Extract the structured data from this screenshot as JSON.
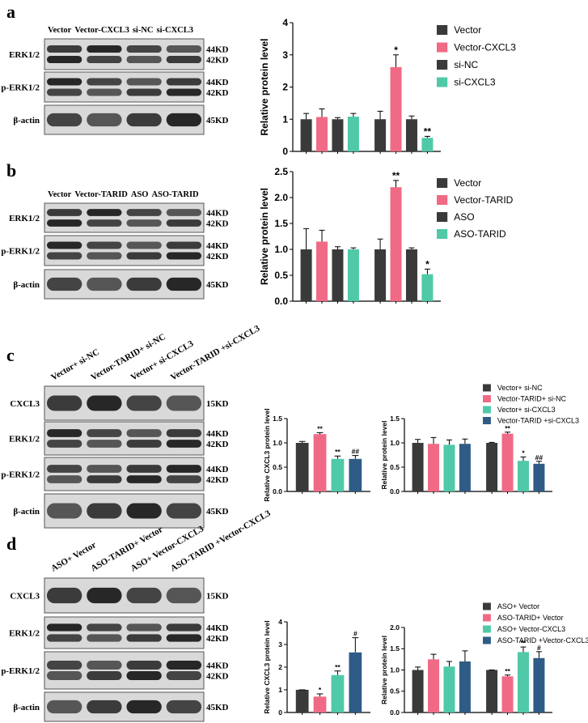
{
  "panels": [
    {
      "letter": "a",
      "rotated": false,
      "lanes": [
        "Vector",
        "Vector-CXCL3",
        "si-NC",
        "si-CXCL3"
      ],
      "rows": [
        {
          "label": "ERK1/2",
          "sizes": [
            "44KD",
            "42KD"
          ]
        },
        {
          "label": "p-ERK1/2",
          "sizes": [
            "44KD",
            "42KD"
          ]
        },
        {
          "label": "β-actin",
          "sizes": [
            "45KD"
          ]
        }
      ]
    },
    {
      "letter": "b",
      "rotated": false,
      "lanes": [
        "Vector",
        "Vector-TARID",
        "ASO",
        "ASO-TARID"
      ],
      "rows": [
        {
          "label": "ERK1/2",
          "sizes": [
            "44KD",
            "42KD"
          ]
        },
        {
          "label": "p-ERK1/2",
          "sizes": [
            "44KD",
            "42KD"
          ]
        },
        {
          "label": "β-actin",
          "sizes": [
            "45KD"
          ]
        }
      ]
    },
    {
      "letter": "c",
      "rotated": true,
      "lanes": [
        "Vector+ si-NC",
        "Vector-TARID+ si-NC",
        "Vector+ si-CXCL3",
        "Vector-TARID +si-CXCL3"
      ],
      "rows": [
        {
          "label": "CXCL3",
          "sizes": [
            "15KD"
          ]
        },
        {
          "label": "ERK1/2",
          "sizes": [
            "44KD",
            "42KD"
          ]
        },
        {
          "label": "p-ERK1/2",
          "sizes": [
            "44KD",
            "42KD"
          ]
        },
        {
          "label": "β-actin",
          "sizes": [
            "45KD"
          ]
        }
      ]
    },
    {
      "letter": "d",
      "rotated": true,
      "lanes": [
        "ASO+ Vector",
        "ASO-TARID+ Vector",
        "ASO+ Vector-CXCL3",
        "ASO-TARID +Vector-CXCL3"
      ],
      "rows": [
        {
          "label": "CXCL3",
          "sizes": [
            "15KD"
          ]
        },
        {
          "label": "ERK1/2",
          "sizes": [
            "44KD",
            "42KD"
          ]
        },
        {
          "label": "p-ERK1/2",
          "sizes": [
            "44KD",
            "42KD"
          ]
        },
        {
          "label": "β-actin",
          "sizes": [
            "45KD"
          ]
        }
      ]
    }
  ],
  "chart_data": [
    {
      "type": "bar",
      "ylabel": "Relative protein level",
      "ylim": [
        0,
        4
      ],
      "yticks": [
        0,
        1,
        2,
        3,
        4
      ],
      "categories": [
        null,
        null
      ],
      "legend": "right",
      "series": [
        {
          "name": "Vector",
          "color": "#3a3a3a",
          "values": [
            1.0,
            1.0
          ],
          "errors": [
            0.18,
            0.25
          ],
          "annotations": [
            null,
            null
          ]
        },
        {
          "name": "Vector-CXCL3",
          "color": "#f06a85",
          "values": [
            1.07,
            2.62
          ],
          "errors": [
            0.25,
            0.38
          ],
          "annotations": [
            null,
            "*"
          ]
        },
        {
          "name": "si-NC",
          "color": "#3a3a3a",
          "values": [
            1.0,
            1.0
          ],
          "errors": [
            0.05,
            0.1
          ],
          "annotations": [
            null,
            null
          ]
        },
        {
          "name": "si-CXCL3",
          "color": "#4fc9a8",
          "values": [
            1.08,
            0.42
          ],
          "errors": [
            0.1,
            0.05
          ],
          "annotations": [
            null,
            "**"
          ]
        }
      ]
    },
    {
      "type": "bar",
      "ylabel": "Relative protein level",
      "ylim": [
        0,
        2.5
      ],
      "yticks": [
        {
          "value": 0,
          "label": "0.0"
        },
        0.5,
        {
          "value": 1,
          "label": "1.0"
        },
        1.5,
        {
          "value": 2,
          "label": "2.0"
        },
        2.5
      ],
      "categories": [
        null,
        null
      ],
      "legend": "right",
      "series": [
        {
          "name": "Vector",
          "color": "#3a3a3a",
          "values": [
            1.0,
            1.0
          ],
          "errors": [
            0.4,
            0.2
          ],
          "annotations": [
            null,
            null
          ]
        },
        {
          "name": "Vector-TARID",
          "color": "#f06a85",
          "values": [
            1.15,
            2.2
          ],
          "errors": [
            0.22,
            0.13
          ],
          "annotations": [
            null,
            "**"
          ]
        },
        {
          "name": "ASO",
          "color": "#3a3a3a",
          "values": [
            1.0,
            1.0
          ],
          "errors": [
            0.05,
            0.03
          ],
          "annotations": [
            null,
            null
          ]
        },
        {
          "name": "ASO-TARID",
          "color": "#4fc9a8",
          "values": [
            1.0,
            0.52
          ],
          "errors": [
            0.03,
            0.1
          ],
          "annotations": [
            null,
            "*"
          ]
        }
      ]
    },
    {
      "type": "bar",
      "ylabel": "Relative CXCL3 protein level",
      "ylim": [
        0,
        1.5
      ],
      "yticks": [
        {
          "value": 0,
          "label": "0.0"
        },
        0.5,
        {
          "value": 1,
          "label": "1.0"
        },
        1.5
      ],
      "categories": [
        null
      ],
      "legend": "right",
      "series": [
        {
          "name": "Vector+ si-NC",
          "color": "#3a3a3a",
          "values": [
            1.0
          ],
          "errors": [
            0.03
          ],
          "annotations": [
            null
          ]
        },
        {
          "name": "Vector-TARID+ si-NC",
          "color": "#f06a85",
          "values": [
            1.18
          ],
          "errors": [
            0.03
          ],
          "annotations": [
            "**"
          ]
        },
        {
          "name": "Vector+ si-CXCL3",
          "color": "#4fc9a8",
          "values": [
            0.67
          ],
          "errors": [
            0.06
          ],
          "annotations": [
            "**"
          ]
        },
        {
          "name": "Vector-TARID +si-CXCL3",
          "color": "#2e5c87",
          "values": [
            0.67
          ],
          "errors": [
            0.07
          ],
          "annotations": [
            "##"
          ]
        }
      ]
    },
    {
      "type": "bar",
      "ylabel": "Relative protein level",
      "ylim": [
        0,
        1.5
      ],
      "yticks": [
        {
          "value": 0,
          "label": "0.0"
        },
        0.5,
        {
          "value": 1,
          "label": "1.0"
        },
        1.5
      ],
      "categories": [
        null,
        null
      ],
      "series": [
        {
          "color": "#3a3a3a",
          "values": [
            1.0,
            1.0
          ],
          "errors": [
            0.07,
            0.01
          ],
          "annotations": [
            null,
            null
          ]
        },
        {
          "color": "#f06a85",
          "values": [
            0.98,
            1.19
          ],
          "errors": [
            0.13,
            0.03
          ],
          "annotations": [
            null,
            "**"
          ]
        },
        {
          "color": "#4fc9a8",
          "values": [
            0.96,
            0.63
          ],
          "errors": [
            0.1,
            0.08
          ],
          "annotations": [
            null,
            "*"
          ]
        },
        {
          "color": "#2e5c87",
          "values": [
            0.98,
            0.57
          ],
          "errors": [
            0.1,
            0.05
          ],
          "annotations": [
            null,
            "##"
          ]
        }
      ]
    },
    {
      "type": "bar",
      "ylabel": "Relative CXCL3 protein level",
      "ylim": [
        0,
        4
      ],
      "yticks": [
        0,
        1,
        2,
        3,
        4
      ],
      "categories": [
        null
      ],
      "legend": "right",
      "series": [
        {
          "name": "ASO+ Vector",
          "color": "#3a3a3a",
          "values": [
            1.0
          ],
          "errors": [
            0.0
          ],
          "annotations": [
            null
          ]
        },
        {
          "name": "ASO-TARID+ Vector",
          "color": "#f06a85",
          "values": [
            0.7
          ],
          "errors": [
            0.12
          ],
          "annotations": [
            "*"
          ]
        },
        {
          "name": "ASO+ Vector-CXCL3",
          "color": "#4fc9a8",
          "values": [
            1.65
          ],
          "errors": [
            0.18
          ],
          "annotations": [
            "**"
          ]
        },
        {
          "name": "ASO-TARID +Vector-CXCL3",
          "color": "#2e5c87",
          "values": [
            2.65
          ],
          "errors": [
            0.65
          ],
          "annotations": [
            "#"
          ]
        }
      ]
    },
    {
      "type": "bar",
      "ylabel": "Relative protein level",
      "ylim": [
        0,
        2
      ],
      "yticks": [
        {
          "value": 0,
          "label": "0.0"
        },
        0.5,
        {
          "value": 1,
          "label": "1.0"
        },
        1.5,
        {
          "value": 2,
          "label": "2.0"
        }
      ],
      "categories": [
        null,
        null
      ],
      "series": [
        {
          "color": "#3a3a3a",
          "values": [
            1.0,
            1.0
          ],
          "errors": [
            0.07,
            0.0
          ],
          "annotations": [
            null,
            null
          ]
        },
        {
          "color": "#f06a85",
          "values": [
            1.25,
            0.85
          ],
          "errors": [
            0.12,
            0.03
          ],
          "annotations": [
            null,
            "**"
          ]
        },
        {
          "color": "#4fc9a8",
          "values": [
            1.08,
            1.42
          ],
          "errors": [
            0.12,
            0.12
          ],
          "annotations": [
            null,
            "**"
          ]
        },
        {
          "color": "#2e5c87",
          "values": [
            1.2,
            1.28
          ],
          "errors": [
            0.25,
            0.15
          ],
          "annotations": [
            null,
            "#"
          ]
        }
      ]
    }
  ]
}
